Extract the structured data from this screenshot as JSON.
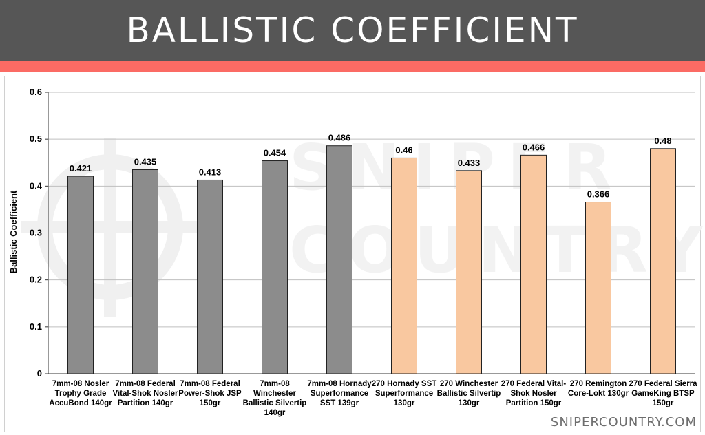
{
  "header": {
    "title": "BALLISTIC COEFFICIENT"
  },
  "brand": {
    "footer": "SNIPERCOUNTRY.COM",
    "watermark_line1": "SNIPER",
    "watermark_line2": "COUNTRY"
  },
  "colors": {
    "header_bg": "#565656",
    "accent": "#fb6b64",
    "bar_7mm": "#8c8c8c",
    "bar_270": "#f9c8a0"
  },
  "chart_data": {
    "type": "bar",
    "title": "",
    "xlabel": "",
    "ylabel": "Ballistic Coefficient",
    "ylim": [
      0,
      0.6
    ],
    "yticks": [
      "0",
      "0.1",
      "0.2",
      "0.3",
      "0.4",
      "0.5",
      "0.6"
    ],
    "grid": true,
    "categories": [
      [
        "7mm-08 Nosler",
        "Trophy Grade",
        "AccuBond 140gr"
      ],
      [
        "7mm-08 Federal",
        "Vital-Shok Nosler",
        "Partition 140gr"
      ],
      [
        "7mm-08 Federal",
        "Power-Shok JSP",
        "150gr"
      ],
      [
        "7mm-08",
        "Winchester",
        "Ballistic Silvertip",
        "140gr"
      ],
      [
        "7mm-08 Hornady",
        "Superformance",
        "SST 139gr"
      ],
      [
        "270 Hornady SST",
        "Superformance",
        "130gr"
      ],
      [
        "270 Winchester",
        "Ballistic Silvertip",
        "130gr"
      ],
      [
        "270 Federal Vital-",
        "Shok Nosler",
        "Partition 150gr"
      ],
      [
        "270 Remington",
        "Core-Lokt 130gr"
      ],
      [
        "270 Federal Sierra",
        "GameKing BTSP",
        "150gr"
      ]
    ],
    "values": [
      0.421,
      0.435,
      0.413,
      0.454,
      0.486,
      0.46,
      0.433,
      0.466,
      0.366,
      0.48
    ],
    "value_labels": [
      "0.421",
      "0.435",
      "0.413",
      "0.454",
      "0.486",
      "0.46",
      "0.433",
      "0.466",
      "0.366",
      "0.48"
    ],
    "bar_groups": [
      "7mm-08",
      "7mm-08",
      "7mm-08",
      "7mm-08",
      "7mm-08",
      "270",
      "270",
      "270",
      "270",
      "270"
    ]
  }
}
